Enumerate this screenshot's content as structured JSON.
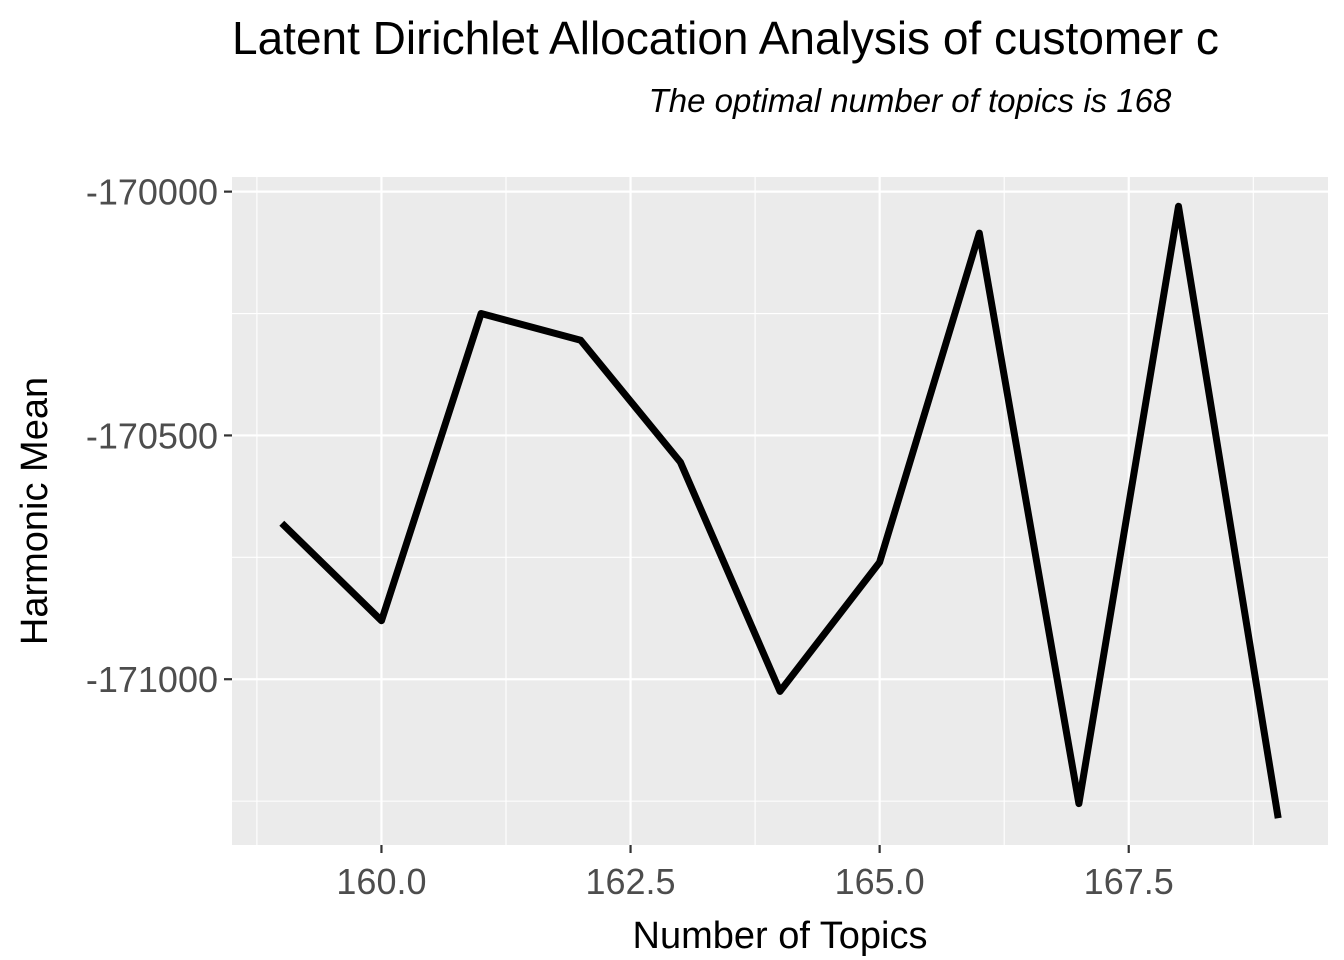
{
  "chart_data": {
    "type": "line",
    "title": "Latent Dirichlet Allocation Analysis of customer c",
    "subtitle": "The optimal number of topics is 168",
    "xlabel": "Number of Topics",
    "ylabel": "Harmonic Mean",
    "x": [
      159,
      160,
      161,
      162,
      163,
      164,
      165,
      166,
      167,
      168,
      169
    ],
    "series": [
      {
        "values": [
          -170680,
          -170880,
          -170250,
          -170305,
          -170555,
          -171025,
          -170760,
          -170085,
          -171255,
          -170030,
          -171285
        ]
      }
    ],
    "xlim": [
      158.5,
      169.5
    ],
    "ylim": [
      -171340,
      -169970
    ],
    "x_major_ticks": [
      160.0,
      162.5,
      165.0,
      167.5
    ],
    "x_tick_labels": [
      "160.0",
      "162.5",
      "165.0",
      "167.5"
    ],
    "x_minor_ticks": [
      158.75,
      161.25,
      163.75,
      166.25,
      168.75
    ],
    "y_major_ticks": [
      -170000,
      -170500,
      -171000
    ],
    "y_tick_labels": [
      "-170000",
      "-170500",
      "-171000"
    ],
    "y_minor_ticks": [
      -170250,
      -170750,
      -171250
    ],
    "grid": true,
    "legend": "none",
    "colors": {
      "line": "#000000",
      "panel": "#ebebeb",
      "grid": "#ffffff",
      "tick_label": "#4d4d4d"
    }
  }
}
